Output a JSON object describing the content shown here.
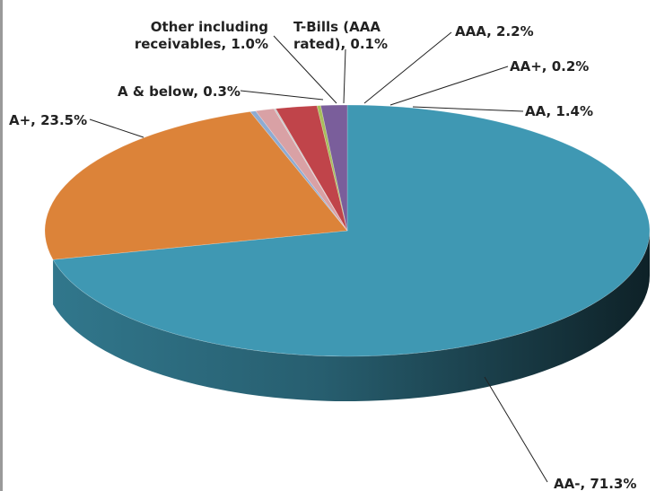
{
  "chart_data": {
    "type": "pie",
    "title": "",
    "categories": [
      "AA-",
      "A+",
      "A & below",
      "Other including receivables",
      "T-Bills (AAA rated)",
      "AAA",
      "AA+",
      "AA"
    ],
    "values": [
      71.3,
      23.5,
      0.3,
      1.0,
      0.1,
      2.2,
      0.2,
      1.4
    ],
    "labels": [
      [
        "AA-, 71.3%"
      ],
      [
        "A+, 23.5%"
      ],
      [
        "A & below, 0.3%"
      ],
      [
        "Other including",
        "receivables, 1.0%"
      ],
      [
        "T-Bills  (AAA",
        "rated), 0.1%"
      ],
      [
        "AAA, 2.2%"
      ],
      [
        "AA+, 0.2%"
      ],
      [
        "AA, 1.4%"
      ]
    ],
    "colors": [
      "#3f98b3",
      "#dc8339",
      "#8eabd2",
      "#d9a1a5",
      "#c9c9c9",
      "#c0444a",
      "#a8be5b",
      "#7a5e9b"
    ],
    "legend": "none",
    "style": "3d",
    "unit": "%"
  }
}
